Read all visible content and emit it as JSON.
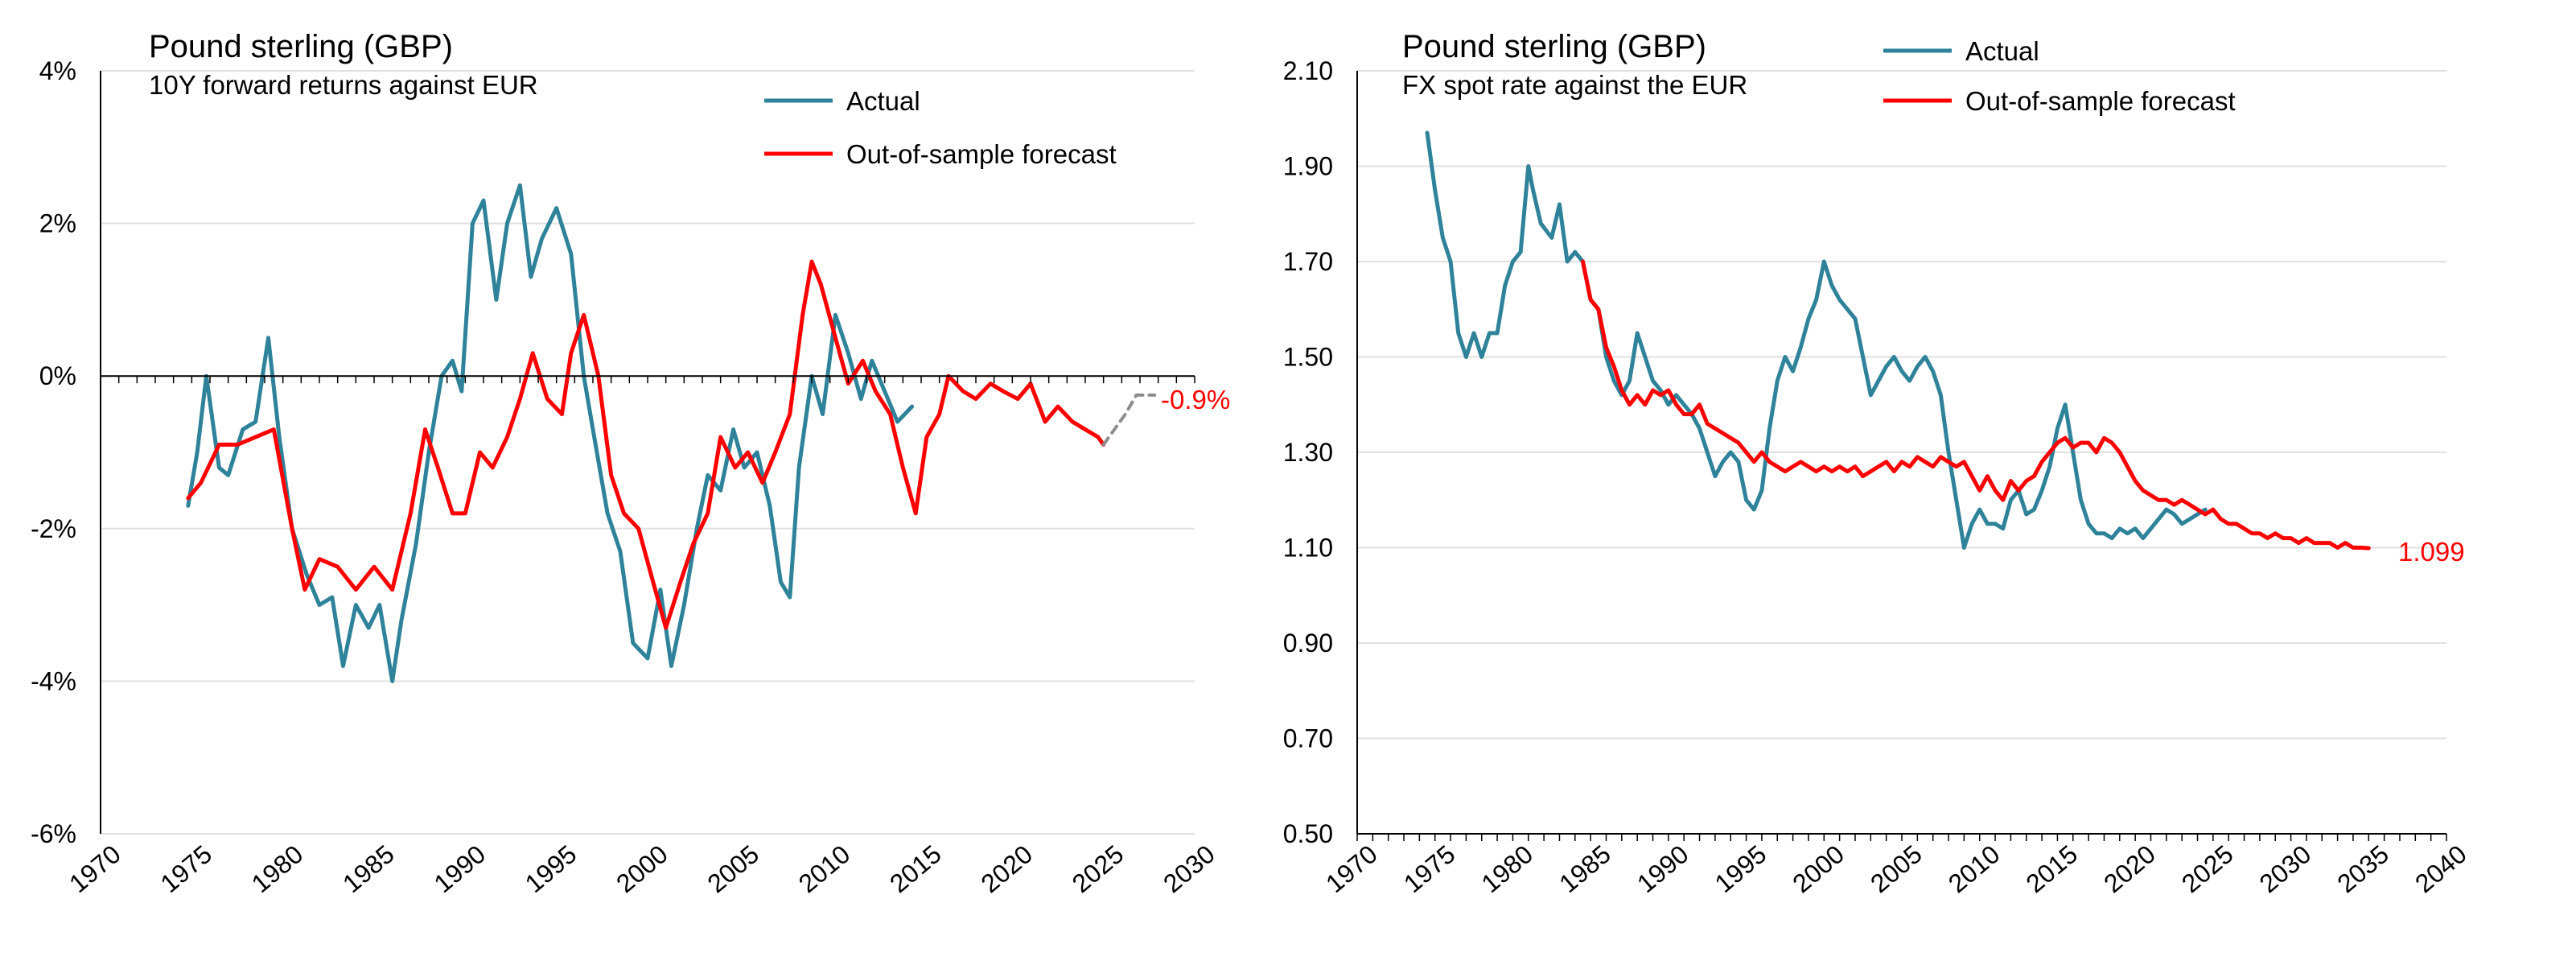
{
  "colors": {
    "actual": "#2E8299",
    "forecast": "#FF0000",
    "projection": "#8C8C8C",
    "grid": "#E0E0E0",
    "axis": "#000000"
  },
  "chart_data": [
    {
      "type": "line",
      "title": "Pound sterling (GBP)",
      "subtitle": "10Y forward returns against EUR",
      "xlim": [
        1970,
        2030
      ],
      "x_ticks": [
        "1970",
        "1975",
        "1980",
        "1985",
        "1990",
        "1995",
        "2000",
        "2005",
        "2010",
        "2015",
        "2020",
        "2025",
        "2030"
      ],
      "ylim": [
        -0.06,
        0.04
      ],
      "y_ticks": [
        {
          "value": 0.04,
          "label": "4%"
        },
        {
          "value": 0.02,
          "label": "2%"
        },
        {
          "value": 0.0,
          "label": "0%"
        },
        {
          "value": -0.02,
          "label": "-2%"
        },
        {
          "value": -0.04,
          "label": "-4%"
        },
        {
          "value": -0.06,
          "label": "-6%"
        }
      ],
      "grid": true,
      "legend_position": "top-right",
      "end_label": "-0.9%",
      "series": [
        {
          "name": "Actual",
          "x": [
            1974.8,
            1975.3,
            1975.8,
            1976.5,
            1977.0,
            1977.8,
            1978.5,
            1979.2,
            1979.8,
            1980.5,
            1981.3,
            1982.0,
            1982.7,
            1983.3,
            1984.0,
            1984.7,
            1985.3,
            1986.0,
            1986.5,
            1987.3,
            1988.0,
            1988.7,
            1989.3,
            1989.8,
            1990.4,
            1991.0,
            1991.7,
            1992.3,
            1993.0,
            1993.6,
            1994.2,
            1995.0,
            1995.8,
            1996.5,
            1997.0,
            1997.8,
            1998.5,
            1999.2,
            2000.0,
            2000.7,
            2001.3,
            2002.0,
            2002.7,
            2003.3,
            2004.0,
            2004.7,
            2005.3,
            2006.0,
            2006.7,
            2007.3,
            2007.8,
            2008.3,
            2009.0,
            2009.6,
            2010.3,
            2011.0,
            2011.7,
            2012.3,
            2013.0,
            2013.7,
            2014.5
          ],
          "y": [
            -0.017,
            -0.01,
            0.0,
            -0.012,
            -0.013,
            -0.007,
            -0.006,
            0.005,
            -0.008,
            -0.02,
            -0.026,
            -0.03,
            -0.029,
            -0.038,
            -0.03,
            -0.033,
            -0.03,
            -0.04,
            -0.032,
            -0.022,
            -0.01,
            0.0,
            0.002,
            -0.002,
            0.02,
            0.023,
            0.01,
            0.02,
            0.025,
            0.013,
            0.018,
            0.022,
            0.016,
            0.0,
            -0.007,
            -0.018,
            -0.023,
            -0.035,
            -0.037,
            -0.028,
            -0.038,
            -0.03,
            -0.02,
            -0.013,
            -0.015,
            -0.007,
            -0.012,
            -0.01,
            -0.017,
            -0.027,
            -0.029,
            -0.012,
            0.0,
            -0.005,
            0.008,
            0.003,
            -0.003,
            0.002,
            -0.002,
            -0.006,
            -0.004
          ]
        },
        {
          "name": "Out-of-sample forecast",
          "x": [
            1974.8,
            1975.5,
            1976.5,
            1977.5,
            1978.5,
            1979.5,
            1980.5,
            1981.2,
            1982.0,
            1983.0,
            1984.0,
            1985.0,
            1986.0,
            1987.0,
            1987.8,
            1988.5,
            1989.3,
            1990.0,
            1990.8,
            1991.5,
            1992.3,
            1993.0,
            1993.7,
            1994.5,
            1995.3,
            1995.8,
            1996.5,
            1997.3,
            1998.0,
            1998.7,
            1999.5,
            2000.3,
            2001.0,
            2001.8,
            2002.5,
            2003.3,
            2004.0,
            2004.8,
            2005.5,
            2006.3,
            2007.0,
            2007.8,
            2008.5,
            2009.0,
            2009.5,
            2010.3,
            2011.0,
            2011.8,
            2012.5,
            2013.3,
            2014.0,
            2014.7,
            2015.3,
            2016.0,
            2016.5,
            2017.3,
            2018.0,
            2018.8,
            2019.5,
            2020.3,
            2021.0,
            2021.8,
            2022.5,
            2023.3,
            2024.0,
            2024.7,
            2025.0
          ],
          "y": [
            -0.016,
            -0.014,
            -0.009,
            -0.009,
            -0.008,
            -0.007,
            -0.02,
            -0.028,
            -0.024,
            -0.025,
            -0.028,
            -0.025,
            -0.028,
            -0.018,
            -0.007,
            -0.012,
            -0.018,
            -0.018,
            -0.01,
            -0.012,
            -0.008,
            -0.003,
            0.003,
            -0.003,
            -0.005,
            0.003,
            0.008,
            0.0,
            -0.013,
            -0.018,
            -0.02,
            -0.027,
            -0.033,
            -0.027,
            -0.022,
            -0.018,
            -0.008,
            -0.012,
            -0.01,
            -0.014,
            -0.01,
            -0.005,
            0.008,
            0.015,
            0.012,
            0.005,
            -0.001,
            0.002,
            -0.002,
            -0.005,
            -0.012,
            -0.018,
            -0.008,
            -0.005,
            0.0,
            -0.002,
            -0.003,
            -0.001,
            -0.002,
            -0.003,
            -0.001,
            -0.006,
            -0.004,
            -0.006,
            -0.007,
            -0.008,
            -0.009
          ]
        },
        {
          "x": [
            2025.0,
            2026.2,
            2026.8,
            2027.8
          ],
          "y": [
            -0.009,
            -0.005,
            -0.0025,
            -0.0025
          ]
        }
      ]
    },
    {
      "type": "line",
      "title": "Pound sterling (GBP)",
      "subtitle": "FX spot rate against the EUR",
      "xlim": [
        1970,
        2040
      ],
      "x_ticks": [
        "1970",
        "1975",
        "1980",
        "1985",
        "1990",
        "1995",
        "2000",
        "2005",
        "2010",
        "2015",
        "2020",
        "2025",
        "2030",
        "2035",
        "2040"
      ],
      "ylim": [
        0.5,
        2.1
      ],
      "y_ticks": [
        {
          "value": 2.1,
          "label": "2.10"
        },
        {
          "value": 1.9,
          "label": "1.90"
        },
        {
          "value": 1.7,
          "label": "1.70"
        },
        {
          "value": 1.5,
          "label": "1.50"
        },
        {
          "value": 1.3,
          "label": "1.30"
        },
        {
          "value": 1.1,
          "label": "1.10"
        },
        {
          "value": 0.9,
          "label": "0.90"
        },
        {
          "value": 0.7,
          "label": "0.70"
        },
        {
          "value": 0.5,
          "label": "0.50"
        }
      ],
      "grid": true,
      "legend_position": "top-right",
      "end_label": "1.099",
      "series": [
        {
          "name": "Actual",
          "x": [
            1974.5,
            1975.0,
            1975.5,
            1976.0,
            1976.5,
            1977.0,
            1977.5,
            1978.0,
            1978.5,
            1979.0,
            1979.5,
            1980.0,
            1980.5,
            1981.0,
            1981.3,
            1981.8,
            1982.5,
            1983.0,
            1983.5,
            1984.0,
            1984.5,
            1985.0,
            1985.5,
            1986.0,
            1986.5,
            1987.0,
            1987.5,
            1988.0,
            1988.5,
            1989.0,
            1989.5,
            1990.0,
            1990.5,
            1991.0,
            1991.5,
            1992.0,
            1992.5,
            1993.0,
            1993.5,
            1994.0,
            1994.5,
            1995.0,
            1995.5,
            1996.0,
            1996.5,
            1997.0,
            1997.5,
            1998.0,
            1998.5,
            1999.0,
            1999.5,
            2000.0,
            2000.5,
            2001.0,
            2001.5,
            2002.0,
            2002.5,
            2003.0,
            2003.5,
            2004.0,
            2004.5,
            2005.0,
            2005.5,
            2006.0,
            2006.5,
            2007.0,
            2007.5,
            2008.0,
            2008.5,
            2009.0,
            2009.5,
            2010.0,
            2010.5,
            2011.0,
            2011.5,
            2012.0,
            2012.5,
            2013.0,
            2013.5,
            2014.0,
            2014.5,
            2015.0,
            2015.5,
            2016.0,
            2016.5,
            2017.0,
            2017.5,
            2018.0,
            2018.5,
            2019.0,
            2019.5,
            2020.0,
            2020.5,
            2021.0,
            2021.5,
            2022.0,
            2022.5,
            2023.0,
            2023.5,
            2024.0,
            2024.5
          ],
          "y": [
            1.97,
            1.85,
            1.75,
            1.7,
            1.55,
            1.5,
            1.55,
            1.5,
            1.55,
            1.55,
            1.65,
            1.7,
            1.72,
            1.9,
            1.85,
            1.78,
            1.75,
            1.82,
            1.7,
            1.72,
            1.7,
            1.62,
            1.6,
            1.5,
            1.45,
            1.42,
            1.45,
            1.55,
            1.5,
            1.45,
            1.43,
            1.4,
            1.42,
            1.4,
            1.38,
            1.35,
            1.3,
            1.25,
            1.28,
            1.3,
            1.28,
            1.2,
            1.18,
            1.22,
            1.35,
            1.45,
            1.5,
            1.47,
            1.52,
            1.58,
            1.62,
            1.7,
            1.65,
            1.62,
            1.6,
            1.58,
            1.5,
            1.42,
            1.45,
            1.48,
            1.5,
            1.47,
            1.45,
            1.48,
            1.5,
            1.47,
            1.42,
            1.3,
            1.2,
            1.1,
            1.15,
            1.18,
            1.15,
            1.15,
            1.14,
            1.2,
            1.22,
            1.17,
            1.18,
            1.22,
            1.27,
            1.35,
            1.4,
            1.3,
            1.2,
            1.15,
            1.13,
            1.13,
            1.12,
            1.14,
            1.13,
            1.14,
            1.12,
            1.14,
            1.16,
            1.18,
            1.17,
            1.15,
            1.16,
            1.17,
            1.18
          ]
        },
        {
          "name": "Out-of-sample forecast",
          "x": [
            1984.5,
            1985.0,
            1985.5,
            1986.0,
            1986.5,
            1987.0,
            1987.5,
            1988.0,
            1988.5,
            1989.0,
            1989.5,
            1990.0,
            1990.5,
            1991.0,
            1991.5,
            1992.0,
            1992.5,
            1993.0,
            1993.5,
            1994.0,
            1994.5,
            1995.0,
            1995.5,
            1996.0,
            1996.5,
            1997.0,
            1997.5,
            1998.0,
            1998.5,
            1999.0,
            1999.5,
            2000.0,
            2000.5,
            2001.0,
            2001.5,
            2002.0,
            2002.5,
            2003.0,
            2003.5,
            2004.0,
            2004.5,
            2005.0,
            2005.5,
            2006.0,
            2006.5,
            2007.0,
            2007.5,
            2008.0,
            2008.5,
            2009.0,
            2009.5,
            2010.0,
            2010.5,
            2011.0,
            2011.5,
            2012.0,
            2012.5,
            2013.0,
            2013.5,
            2014.0,
            2014.5,
            2015.0,
            2015.5,
            2016.0,
            2016.5,
            2017.0,
            2017.5,
            2018.0,
            2018.5,
            2019.0,
            2019.5,
            2020.0,
            2020.5,
            2021.0,
            2021.5,
            2022.0,
            2022.5,
            2023.0,
            2023.5,
            2024.0,
            2024.5,
            2025.0,
            2025.5,
            2026.0,
            2026.5,
            2027.0,
            2027.5,
            2028.0,
            2028.5,
            2029.0,
            2029.5,
            2030.0,
            2030.5,
            2031.0,
            2031.5,
            2032.0,
            2032.5,
            2033.0,
            2033.5,
            2034.0,
            2034.5,
            2035.0
          ],
          "y": [
            1.7,
            1.62,
            1.6,
            1.52,
            1.48,
            1.43,
            1.4,
            1.42,
            1.4,
            1.43,
            1.42,
            1.43,
            1.4,
            1.38,
            1.38,
            1.4,
            1.36,
            1.35,
            1.34,
            1.33,
            1.32,
            1.3,
            1.28,
            1.3,
            1.28,
            1.27,
            1.26,
            1.27,
            1.28,
            1.27,
            1.26,
            1.27,
            1.26,
            1.27,
            1.26,
            1.27,
            1.25,
            1.26,
            1.27,
            1.28,
            1.26,
            1.28,
            1.27,
            1.29,
            1.28,
            1.27,
            1.29,
            1.28,
            1.27,
            1.28,
            1.25,
            1.22,
            1.25,
            1.22,
            1.2,
            1.24,
            1.22,
            1.24,
            1.25,
            1.28,
            1.3,
            1.32,
            1.33,
            1.31,
            1.32,
            1.32,
            1.3,
            1.33,
            1.32,
            1.3,
            1.27,
            1.24,
            1.22,
            1.21,
            1.2,
            1.2,
            1.19,
            1.2,
            1.19,
            1.18,
            1.17,
            1.18,
            1.16,
            1.15,
            1.15,
            1.14,
            1.13,
            1.13,
            1.12,
            1.13,
            1.12,
            1.12,
            1.11,
            1.12,
            1.11,
            1.11,
            1.11,
            1.1,
            1.11,
            1.1,
            1.1,
            1.099
          ]
        }
      ]
    }
  ]
}
